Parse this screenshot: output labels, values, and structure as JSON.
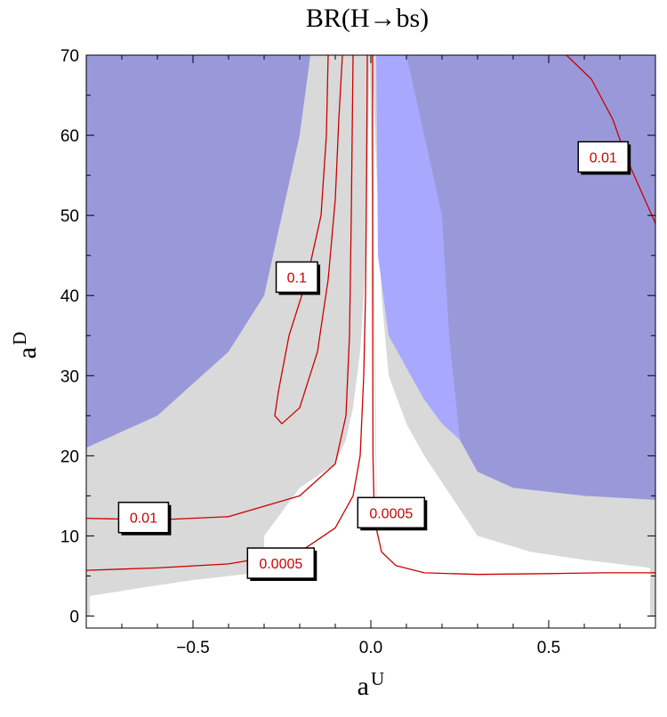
{
  "chart_data": {
    "type": "contour",
    "title": "BR(H→bs)",
    "xlabel": {
      "base": "a",
      "sup": "U"
    },
    "ylabel": {
      "base": "a",
      "sup": "D"
    },
    "xlim": [
      -0.8,
      0.8
    ],
    "ylim": [
      -1.5,
      70
    ],
    "x_ticks": [
      -0.5,
      0.0,
      0.5
    ],
    "x_tick_labels": [
      "−0.5",
      "0.0",
      "0.5"
    ],
    "y_ticks": [
      0,
      10,
      20,
      30,
      40,
      50,
      60,
      70
    ],
    "y_tick_labels": [
      "0",
      "10",
      "20",
      "30",
      "40",
      "50",
      "60",
      "70"
    ],
    "colors": {
      "excluded_dark": "#9999da",
      "excluded_light": "#a8a8ff",
      "grey_region": "#d9d9d9",
      "contour": "#cc0000",
      "frame": "#000000"
    },
    "regions": [
      {
        "id": "grey",
        "color": "#d9d9d9",
        "points": [
          [
            -0.8,
            70
          ],
          [
            0.8,
            70
          ],
          [
            0.8,
            0
          ],
          [
            0.785,
            0
          ],
          [
            0.785,
            2
          ],
          [
            0.65,
            3
          ],
          [
            0.5,
            4.5
          ],
          [
            0.3,
            6
          ],
          [
            0.2,
            7
          ],
          [
            0.1,
            8
          ],
          [
            0.0,
            9
          ],
          [
            -0.1,
            8
          ],
          [
            -0.2,
            7
          ],
          [
            -0.3,
            5.5
          ],
          [
            -0.5,
            4.5
          ],
          [
            -0.65,
            3.5
          ],
          [
            -0.79,
            2.5
          ],
          [
            -0.79,
            0
          ],
          [
            -0.8,
            0
          ]
        ]
      },
      {
        "id": "white-right",
        "color": "#ffffff",
        "points": [
          [
            0.003,
            70
          ],
          [
            0.03,
            40
          ],
          [
            0.05,
            30
          ],
          [
            0.1,
            24
          ],
          [
            0.15,
            20
          ],
          [
            0.3,
            10
          ],
          [
            0.45,
            8
          ],
          [
            0.6,
            7
          ],
          [
            0.785,
            6
          ],
          [
            0.785,
            0
          ],
          [
            0.02,
            0
          ]
        ]
      },
      {
        "id": "white-left",
        "color": "#ffffff",
        "points": [
          [
            -0.003,
            70
          ],
          [
            -0.012,
            50
          ],
          [
            -0.02,
            40
          ],
          [
            -0.03,
            33
          ],
          [
            -0.05,
            26
          ],
          [
            -0.07,
            22
          ],
          [
            -0.1,
            19
          ],
          [
            -0.2,
            16
          ],
          [
            -0.3,
            10
          ],
          [
            -0.3,
            0
          ],
          [
            0.02,
            0
          ]
        ]
      },
      {
        "id": "light-blue",
        "color": "#a8a8ff",
        "points": [
          [
            0.015,
            70
          ],
          [
            0.18,
            70
          ],
          [
            0.2,
            60
          ],
          [
            0.22,
            40
          ],
          [
            0.25,
            22
          ],
          [
            0.2,
            24
          ],
          [
            0.15,
            27
          ],
          [
            0.1,
            31
          ],
          [
            0.05,
            35
          ],
          [
            0.02,
            45
          ]
        ]
      },
      {
        "id": "blue-right",
        "color": "#9999da",
        "points": [
          [
            0.1,
            70
          ],
          [
            0.8,
            70
          ],
          [
            0.8,
            14.5
          ],
          [
            0.6,
            15
          ],
          [
            0.4,
            16
          ],
          [
            0.3,
            18
          ],
          [
            0.25,
            22
          ],
          [
            0.22,
            35
          ],
          [
            0.2,
            50
          ],
          [
            0.1,
            70
          ]
        ]
      },
      {
        "id": "blue-left",
        "color": "#9999da",
        "points": [
          [
            -0.8,
            70
          ],
          [
            -0.17,
            70
          ],
          [
            -0.2,
            60
          ],
          [
            -0.25,
            50
          ],
          [
            -0.3,
            40
          ],
          [
            -0.4,
            33
          ],
          [
            -0.5,
            29
          ],
          [
            -0.6,
            25
          ],
          [
            -0.7,
            23
          ],
          [
            -0.8,
            21
          ]
        ]
      }
    ],
    "contours": [
      {
        "label": "0.1",
        "points": [
          [
            -0.12,
            70
          ],
          [
            -0.125,
            60
          ],
          [
            -0.14,
            50
          ],
          [
            -0.18,
            42
          ],
          [
            -0.23,
            35
          ],
          [
            -0.26,
            28
          ],
          [
            -0.27,
            25
          ],
          [
            -0.25,
            24
          ],
          [
            -0.2,
            26
          ],
          [
            -0.15,
            33
          ],
          [
            -0.12,
            42
          ],
          [
            -0.1,
            52
          ],
          [
            -0.09,
            62
          ],
          [
            -0.08,
            70
          ]
        ]
      },
      {
        "label": "0.01",
        "points": [
          [
            -0.8,
            12.2
          ],
          [
            -0.6,
            12
          ],
          [
            -0.4,
            12.4
          ],
          [
            -0.2,
            15
          ],
          [
            -0.1,
            19
          ],
          [
            -0.07,
            25
          ],
          [
            -0.06,
            35
          ],
          [
            -0.055,
            50
          ],
          [
            -0.05,
            70
          ]
        ]
      },
      {
        "label": "0.0005",
        "points": [
          [
            -0.8,
            5.7
          ],
          [
            -0.6,
            6
          ],
          [
            -0.4,
            6.5
          ],
          [
            -0.2,
            8
          ],
          [
            -0.1,
            11
          ],
          [
            -0.05,
            15
          ],
          [
            -0.03,
            20
          ],
          [
            -0.02,
            30
          ],
          [
            -0.015,
            40
          ],
          [
            -0.012,
            55
          ],
          [
            -0.01,
            70
          ]
        ]
      },
      {
        "label": "0.0005",
        "points": [
          [
            0.005,
            70
          ],
          [
            0.005,
            40
          ],
          [
            0.006,
            20
          ],
          [
            0.01,
            12
          ],
          [
            0.03,
            8
          ],
          [
            0.07,
            6.3
          ],
          [
            0.15,
            5.4
          ],
          [
            0.3,
            5.2
          ],
          [
            0.5,
            5.3
          ],
          [
            0.65,
            5.4
          ],
          [
            0.8,
            5.4
          ]
        ]
      },
      {
        "label": "0.01",
        "points": [
          [
            0.55,
            70
          ],
          [
            0.62,
            67
          ],
          [
            0.68,
            62
          ],
          [
            0.72,
            57
          ],
          [
            0.75,
            54
          ],
          [
            0.8,
            49
          ]
        ]
      }
    ],
    "contour_labels": [
      {
        "text": "0.01",
        "x": 0.653,
        "y": 57.3
      },
      {
        "text": "0.1",
        "x": -0.208,
        "y": 42.3
      },
      {
        "text": "0.01",
        "x": -0.639,
        "y": 12.3
      },
      {
        "text": "0.0005",
        "x": 0.057,
        "y": 12.9
      },
      {
        "text": "0.0005",
        "x": -0.253,
        "y": 6.6
      }
    ]
  }
}
